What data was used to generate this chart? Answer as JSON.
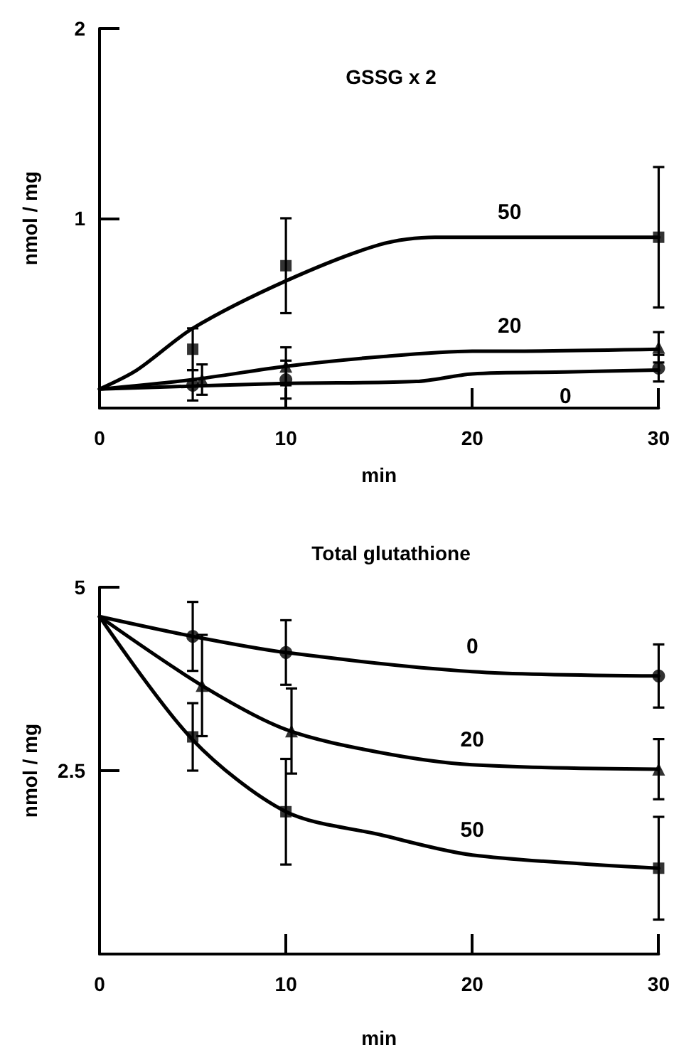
{
  "chart_data": [
    {
      "type": "line",
      "title": "GSSG x 2",
      "xlabel": "min",
      "ylabel": "nmol / mg",
      "xlim": [
        0,
        30
      ],
      "xticks": [
        0,
        10,
        20,
        30
      ],
      "ylim": [
        0,
        2
      ],
      "yticks": [
        {
          "value": 0,
          "label": null
        },
        1,
        2
      ],
      "series": [
        {
          "name": "50",
          "type": "line",
          "color": "#000000",
          "marker": "none",
          "x": [
            0,
            2,
            5,
            10,
            15,
            18,
            22,
            30
          ],
          "values": [
            0.1,
            0.2,
            0.42,
            0.67,
            0.86,
            0.9,
            0.9,
            0.9
          ]
        },
        {
          "name": "20",
          "type": "line",
          "color": "#000000",
          "marker": "none",
          "x": [
            0,
            5,
            10,
            15,
            20,
            22,
            30
          ],
          "values": [
            0.1,
            0.15,
            0.22,
            0.27,
            0.3,
            0.3,
            0.31
          ]
        },
        {
          "name": "0",
          "type": "line",
          "color": "#000000",
          "marker": "none",
          "x": [
            0,
            10,
            17,
            20,
            25,
            30
          ],
          "values": [
            0.1,
            0.13,
            0.14,
            0.18,
            0.19,
            0.2
          ]
        },
        {
          "type": "scatter",
          "color": "#000000",
          "marker": "square",
          "x": [
            5,
            10,
            30
          ],
          "values": [
            0.31,
            0.75,
            0.9
          ],
          "errors": [
            0.11,
            0.25,
            0.37
          ]
        },
        {
          "type": "scatter",
          "color": "#000000",
          "marker": "triangle",
          "x": [
            5.5,
            10,
            30
          ],
          "values": [
            0.15,
            0.22,
            0.32
          ],
          "errors": [
            0.08,
            0.1,
            0.08
          ]
        },
        {
          "type": "scatter",
          "color": "#000000",
          "marker": "circle",
          "x": [
            5,
            10,
            30
          ],
          "values": [
            0.12,
            0.15,
            0.21
          ],
          "errors": [
            0.08,
            0.1,
            0.07
          ]
        }
      ]
    },
    {
      "type": "line",
      "title": "Total glutathione",
      "xlabel": "min",
      "ylabel": "nmol / mg",
      "xlim": [
        0,
        30
      ],
      "xticks": [
        0,
        10,
        20,
        30
      ],
      "ylim": [
        0,
        5
      ],
      "yticks": [
        {
          "value": 0,
          "label": null
        },
        2.5,
        5
      ],
      "series": [
        {
          "name": "0",
          "type": "line",
          "color": "#000000",
          "marker": "none",
          "x": [
            0,
            5,
            10,
            20,
            30
          ],
          "values": [
            4.6,
            4.33,
            4.11,
            3.85,
            3.79
          ]
        },
        {
          "name": "20",
          "type": "line",
          "color": "#000000",
          "marker": "none",
          "x": [
            0,
            5.5,
            10,
            15,
            20,
            30
          ],
          "values": [
            4.6,
            3.66,
            3.06,
            2.75,
            2.58,
            2.52
          ]
        },
        {
          "name": "50",
          "type": "line",
          "color": "#000000",
          "marker": "none",
          "x": [
            0,
            5,
            10,
            15,
            20,
            30
          ],
          "values": [
            4.6,
            2.92,
            1.94,
            1.63,
            1.35,
            1.17
          ]
        },
        {
          "type": "scatter",
          "color": "#000000",
          "marker": "circle",
          "x": [
            5,
            10,
            30
          ],
          "values": [
            4.33,
            4.11,
            3.79
          ],
          "errors": [
            0.47,
            0.44,
            0.43
          ]
        },
        {
          "type": "scatter",
          "color": "#000000",
          "marker": "triangle",
          "x": [
            5.5,
            10.3,
            30
          ],
          "values": [
            3.66,
            3.04,
            2.52
          ],
          "errors": [
            0.69,
            0.58,
            0.41
          ]
        },
        {
          "type": "scatter",
          "color": "#000000",
          "marker": "square",
          "x": [
            5,
            10,
            30
          ],
          "values": [
            2.96,
            1.94,
            1.17
          ],
          "errors": [
            0.46,
            0.72,
            0.7
          ]
        }
      ]
    }
  ]
}
